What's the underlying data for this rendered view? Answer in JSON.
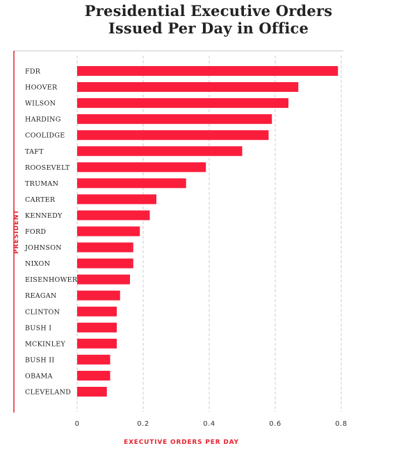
{
  "chart_data": {
    "type": "bar",
    "orientation": "horizontal",
    "title": [
      "Presidential Executive Orders",
      "Issued Per Day in Office"
    ],
    "xlabel": "EXECUTIVE ORDERS PER DAY",
    "ylabel": "PRESIDENT",
    "xlim": [
      0,
      0.8
    ],
    "xticks": [
      "0",
      "0.2",
      "0.4",
      "0.6",
      "0.8"
    ],
    "xtick_values": [
      0,
      0.2,
      0.4,
      0.6,
      0.8
    ],
    "grid": "vertical-dashed",
    "bar_color": "#fa1e3c",
    "accent_color": "#e8222f",
    "categories": [
      "FDR",
      "HOOVER",
      "WILSON",
      "HARDING",
      "COOLIDGE",
      "TAFT",
      "ROOSEVELT",
      "TRUMAN",
      "CARTER",
      "KENNEDY",
      "FORD",
      "JOHNSON",
      "NIXON",
      "EISENHOWER",
      "REAGAN",
      "CLINTON",
      "BUSH I",
      "MCKINLEY",
      "BUSH II",
      "OBAMA",
      "CLEVELAND"
    ],
    "values": [
      0.79,
      0.67,
      0.64,
      0.59,
      0.58,
      0.5,
      0.39,
      0.33,
      0.24,
      0.22,
      0.19,
      0.17,
      0.17,
      0.16,
      0.13,
      0.12,
      0.12,
      0.12,
      0.1,
      0.1,
      0.09
    ]
  }
}
